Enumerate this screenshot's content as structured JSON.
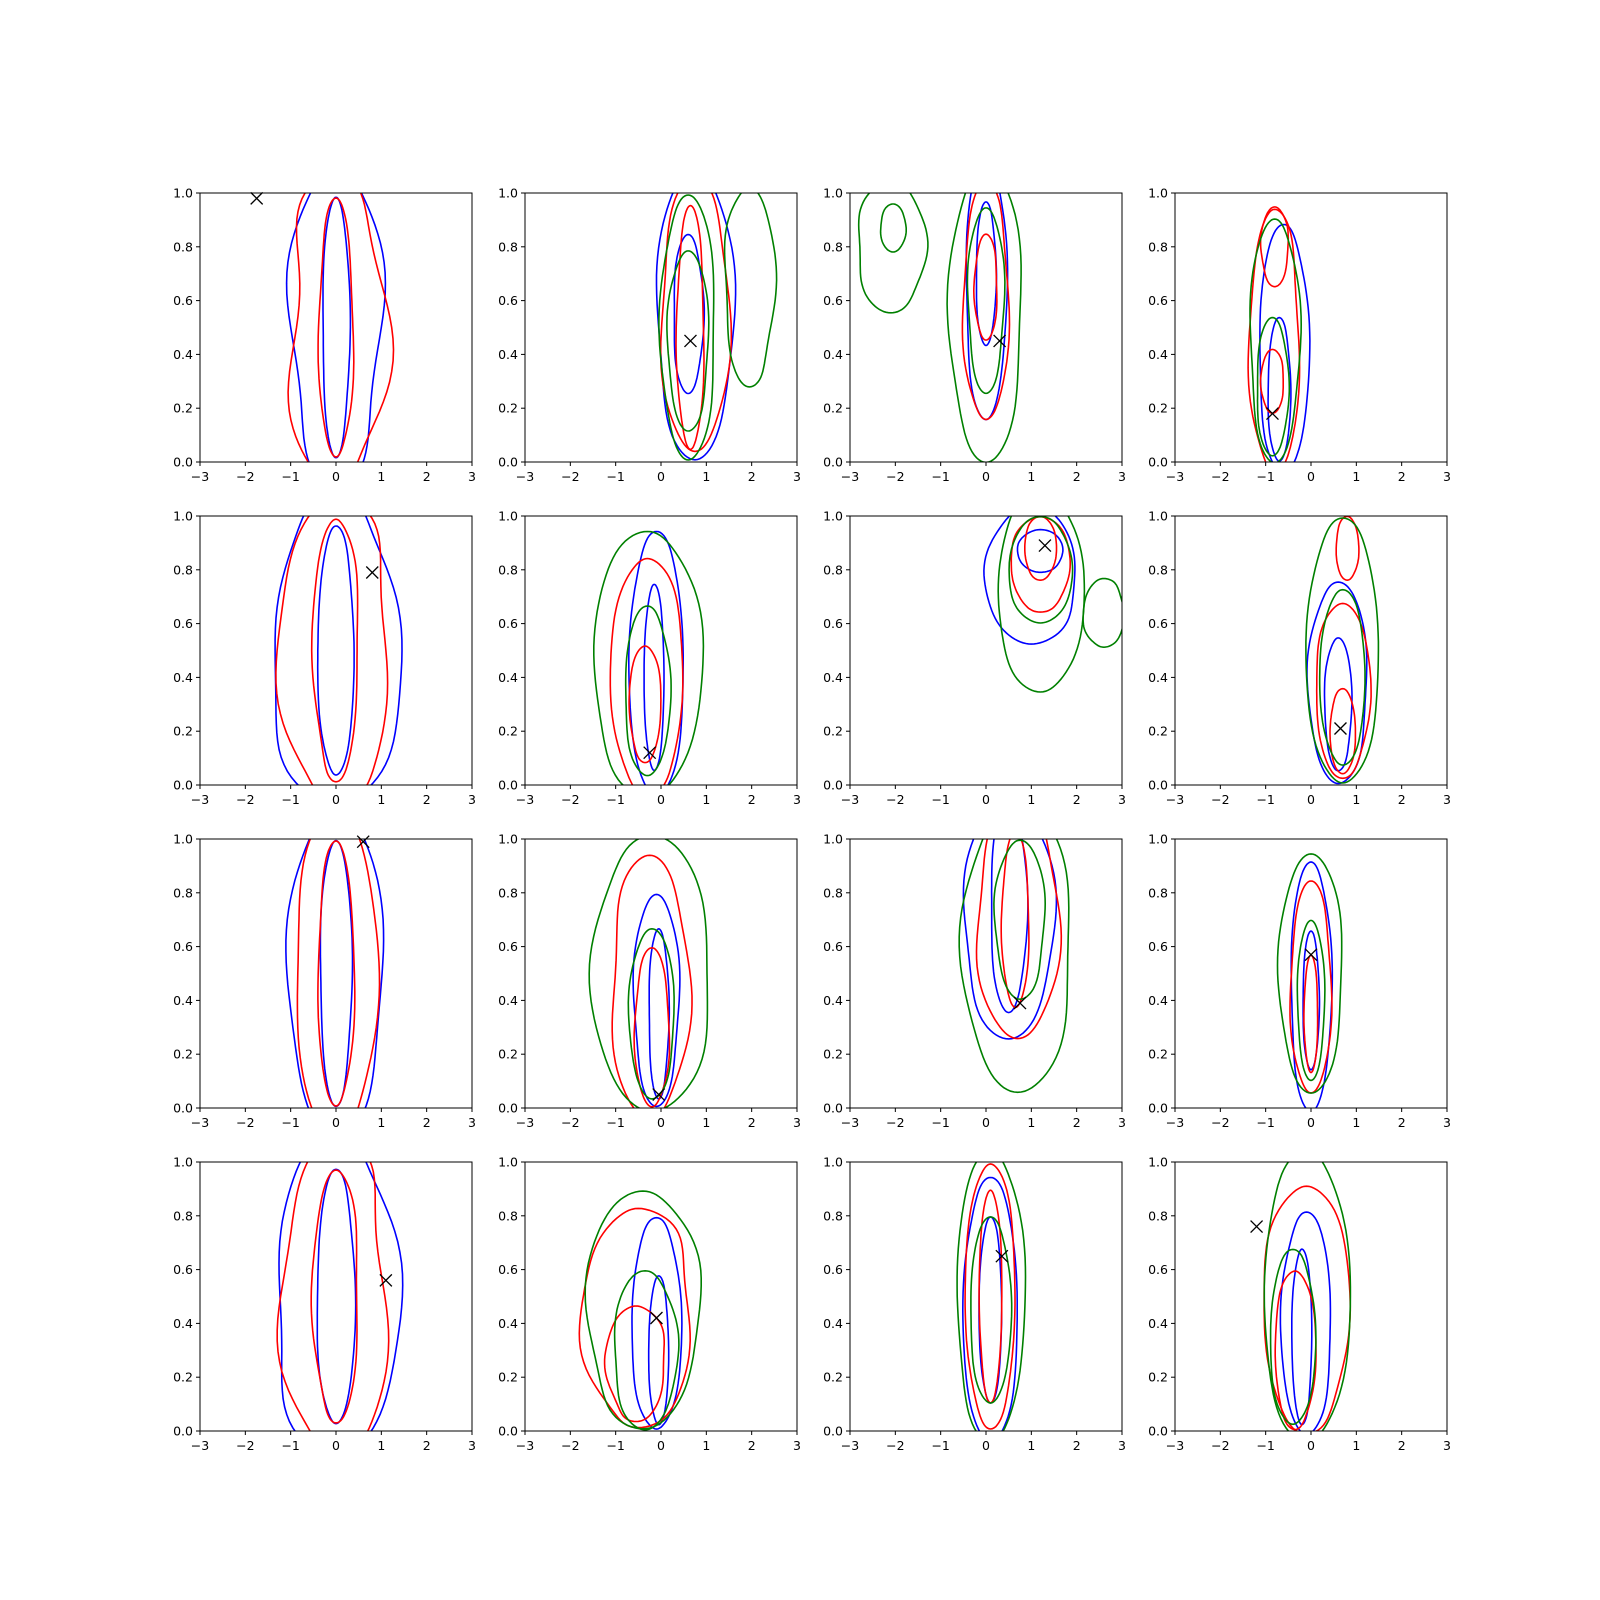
{
  "figure": {
    "rows": 4,
    "cols": 4,
    "background": "#ffffff"
  },
  "colors": {
    "blue": "#0000ff",
    "red": "#ff0000",
    "green": "#008000",
    "marker": "#000000"
  },
  "axes_common": {
    "xlim": [
      -3,
      3
    ],
    "ylim": [
      0,
      1
    ],
    "xticks": [
      -3,
      -2,
      -1,
      0,
      1,
      2,
      3
    ],
    "yticks": [
      0.0,
      0.2,
      0.4,
      0.6,
      0.8,
      1.0
    ],
    "xtick_labels": [
      "−3",
      "−2",
      "−1",
      "0",
      "1",
      "2",
      "3"
    ],
    "ytick_labels": [
      "0.0",
      "0.2",
      "0.4",
      "0.6",
      "0.8",
      "1.0"
    ],
    "grid": false
  },
  "chart_data": [
    {
      "type": "contour",
      "marker": [
        -1.75,
        0.98
      ],
      "contours": [
        {
          "color": "blue",
          "center": [
            0,
            0.5
          ],
          "sx": 1.0,
          "sy": 0.62,
          "wobble": 0.1
        },
        {
          "color": "blue",
          "center": [
            0,
            0.5
          ],
          "sx": 0.3,
          "sy": 0.49,
          "wobble": 0.04
        },
        {
          "color": "red",
          "center": [
            0,
            0.5
          ],
          "sx": 1.05,
          "sy": 0.61,
          "wobble": 0.14
        },
        {
          "color": "red",
          "center": [
            0,
            0.5
          ],
          "sx": 0.38,
          "sy": 0.49,
          "wobble": 0.06
        }
      ]
    },
    {
      "type": "contour",
      "marker": [
        0.65,
        0.45
      ],
      "contours": [
        {
          "color": "blue",
          "center": [
            0.75,
            0.55
          ],
          "sx": 0.85,
          "sy": 0.55,
          "wobble": 0.05
        },
        {
          "color": "blue",
          "center": [
            0.6,
            0.55
          ],
          "sx": 0.33,
          "sy": 0.3,
          "wobble": 0.05
        },
        {
          "color": "red",
          "center": [
            0.75,
            0.55
          ],
          "sx": 0.75,
          "sy": 0.52,
          "wobble": 0.06
        },
        {
          "color": "red",
          "center": [
            0.65,
            0.5
          ],
          "sx": 0.3,
          "sy": 0.46,
          "wobble": 0.05
        },
        {
          "color": "green",
          "center": [
            0.6,
            0.5
          ],
          "sx": 0.6,
          "sy": 0.5,
          "wobble": 0.05
        },
        {
          "color": "green",
          "center": [
            0.6,
            0.45
          ],
          "sx": 0.45,
          "sy": 0.34,
          "wobble": 0.05
        },
        {
          "color": "green",
          "center": [
            1.95,
            0.65
          ],
          "sx": 0.55,
          "sy": 0.38,
          "wobble": 0.08
        }
      ]
    },
    {
      "type": "contour",
      "marker": [
        0.3,
        0.45
      ],
      "contours": [
        {
          "color": "blue",
          "center": [
            0,
            0.65
          ],
          "sx": 0.45,
          "sy": 0.5,
          "wobble": 0.05
        },
        {
          "color": "blue",
          "center": [
            0,
            0.7
          ],
          "sx": 0.22,
          "sy": 0.27,
          "wobble": 0.04
        },
        {
          "color": "red",
          "center": [
            0,
            0.6
          ],
          "sx": 0.5,
          "sy": 0.45,
          "wobble": 0.06
        },
        {
          "color": "red",
          "center": [
            0,
            0.65
          ],
          "sx": 0.25,
          "sy": 0.2,
          "wobble": 0.05
        },
        {
          "color": "green",
          "center": [
            0,
            0.55
          ],
          "sx": 0.8,
          "sy": 0.56,
          "wobble": 0.05
        },
        {
          "color": "green",
          "center": [
            0,
            0.6
          ],
          "sx": 0.4,
          "sy": 0.35,
          "wobble": 0.05
        },
        {
          "color": "green",
          "center": [
            -2.1,
            0.8
          ],
          "sx": 0.75,
          "sy": 0.25,
          "wobble": 0.06
        },
        {
          "color": "green",
          "center": [
            -2.05,
            0.87
          ],
          "sx": 0.28,
          "sy": 0.09,
          "wobble": 0.03
        }
      ]
    },
    {
      "type": "contour",
      "marker": [
        -0.85,
        0.18
      ],
      "contours": [
        {
          "color": "blue",
          "center": [
            -0.6,
            0.42
          ],
          "sx": 0.55,
          "sy": 0.47,
          "wobble": 0.05
        },
        {
          "color": "blue",
          "center": [
            -0.7,
            0.27
          ],
          "sx": 0.25,
          "sy": 0.27,
          "wobble": 0.04
        },
        {
          "color": "red",
          "center": [
            -0.8,
            0.45
          ],
          "sx": 0.55,
          "sy": 0.5,
          "wobble": 0.07
        },
        {
          "color": "red",
          "center": [
            -0.85,
            0.3
          ],
          "sx": 0.25,
          "sy": 0.12,
          "wobble": 0.04
        },
        {
          "color": "red",
          "center": [
            -0.8,
            0.8
          ],
          "sx": 0.3,
          "sy": 0.15,
          "wobble": 0.04
        },
        {
          "color": "green",
          "center": [
            -0.8,
            0.45
          ],
          "sx": 0.55,
          "sy": 0.46,
          "wobble": 0.05
        },
        {
          "color": "green",
          "center": [
            -0.85,
            0.28
          ],
          "sx": 0.35,
          "sy": 0.26,
          "wobble": 0.04
        }
      ]
    },
    {
      "type": "contour",
      "marker": [
        0.8,
        0.79
      ],
      "contours": [
        {
          "color": "blue",
          "center": [
            0,
            0.5
          ],
          "sx": 1.4,
          "sy": 0.6,
          "wobble": 0.12
        },
        {
          "color": "blue",
          "center": [
            0,
            0.5
          ],
          "sx": 0.4,
          "sy": 0.47,
          "wobble": 0.05
        },
        {
          "color": "red",
          "center": [
            0,
            0.5
          ],
          "sx": 1.2,
          "sy": 0.6,
          "wobble": 0.12
        },
        {
          "color": "red",
          "center": [
            0,
            0.5
          ],
          "sx": 0.5,
          "sy": 0.5,
          "wobble": 0.08
        }
      ]
    },
    {
      "type": "contour",
      "marker": [
        -0.25,
        0.12
      ],
      "contours": [
        {
          "color": "blue",
          "center": [
            -0.1,
            0.45
          ],
          "sx": 0.6,
          "sy": 0.5,
          "wobble": 0.05
        },
        {
          "color": "blue",
          "center": [
            -0.15,
            0.4
          ],
          "sx": 0.22,
          "sy": 0.35,
          "wobble": 0.04
        },
        {
          "color": "red",
          "center": [
            -0.3,
            0.4
          ],
          "sx": 0.8,
          "sy": 0.45,
          "wobble": 0.06
        },
        {
          "color": "red",
          "center": [
            -0.35,
            0.3
          ],
          "sx": 0.35,
          "sy": 0.22,
          "wobble": 0.05
        },
        {
          "color": "green",
          "center": [
            -0.3,
            0.45
          ],
          "sx": 1.2,
          "sy": 0.5,
          "wobble": 0.05
        },
        {
          "color": "green",
          "center": [
            -0.3,
            0.35
          ],
          "sx": 0.5,
          "sy": 0.32,
          "wobble": 0.05
        }
      ]
    },
    {
      "type": "contour",
      "marker": [
        1.3,
        0.89
      ],
      "contours": [
        {
          "color": "blue",
          "center": [
            1.0,
            0.78
          ],
          "sx": 1.0,
          "sy": 0.26,
          "wobble": 0.05
        },
        {
          "color": "blue",
          "center": [
            1.2,
            0.87
          ],
          "sx": 0.5,
          "sy": 0.08,
          "wobble": 0.03
        },
        {
          "color": "red",
          "center": [
            1.2,
            0.82
          ],
          "sx": 0.65,
          "sy": 0.18,
          "wobble": 0.05
        },
        {
          "color": "red",
          "center": [
            1.2,
            0.88
          ],
          "sx": 0.35,
          "sy": 0.12,
          "wobble": 0.04
        },
        {
          "color": "green",
          "center": [
            1.2,
            0.72
          ],
          "sx": 0.95,
          "sy": 0.38,
          "wobble": 0.05
        },
        {
          "color": "green",
          "center": [
            1.2,
            0.8
          ],
          "sx": 0.7,
          "sy": 0.2,
          "wobble": 0.04
        },
        {
          "color": "green",
          "center": [
            2.6,
            0.64
          ],
          "sx": 0.45,
          "sy": 0.13,
          "wobble": 0.06
        }
      ]
    },
    {
      "type": "contour",
      "marker": [
        0.65,
        0.21
      ],
      "contours": [
        {
          "color": "blue",
          "center": [
            0.6,
            0.38
          ],
          "sx": 0.65,
          "sy": 0.38,
          "wobble": 0.05
        },
        {
          "color": "blue",
          "center": [
            0.6,
            0.3
          ],
          "sx": 0.3,
          "sy": 0.25,
          "wobble": 0.04
        },
        {
          "color": "red",
          "center": [
            0.7,
            0.35
          ],
          "sx": 0.6,
          "sy": 0.33,
          "wobble": 0.05
        },
        {
          "color": "red",
          "center": [
            0.8,
            0.88
          ],
          "sx": 0.25,
          "sy": 0.12,
          "wobble": 0.04
        },
        {
          "color": "red",
          "center": [
            0.7,
            0.2
          ],
          "sx": 0.28,
          "sy": 0.16,
          "wobble": 0.04
        },
        {
          "color": "green",
          "center": [
            0.7,
            0.5
          ],
          "sx": 0.8,
          "sy": 0.5,
          "wobble": 0.05
        },
        {
          "color": "green",
          "center": [
            0.7,
            0.4
          ],
          "sx": 0.5,
          "sy": 0.33,
          "wobble": 0.04
        }
      ]
    },
    {
      "type": "contour",
      "marker": [
        0.6,
        0.99
      ],
      "contours": [
        {
          "color": "blue",
          "center": [
            0,
            0.5
          ],
          "sx": 1.05,
          "sy": 0.62,
          "wobble": 0.05
        },
        {
          "color": "blue",
          "center": [
            0,
            0.5
          ],
          "sx": 0.35,
          "sy": 0.5,
          "wobble": 0.04
        },
        {
          "color": "red",
          "center": [
            0,
            0.5
          ],
          "sx": 0.9,
          "sy": 0.62,
          "wobble": 0.05
        },
        {
          "color": "red",
          "center": [
            0,
            0.5
          ],
          "sx": 0.4,
          "sy": 0.5,
          "wobble": 0.05
        }
      ]
    },
    {
      "type": "contour",
      "marker": [
        -0.05,
        0.05
      ],
      "contours": [
        {
          "color": "blue",
          "center": [
            -0.1,
            0.4
          ],
          "sx": 0.5,
          "sy": 0.4,
          "wobble": 0.05
        },
        {
          "color": "blue",
          "center": [
            -0.05,
            0.35
          ],
          "sx": 0.22,
          "sy": 0.32,
          "wobble": 0.04
        },
        {
          "color": "red",
          "center": [
            -0.25,
            0.45
          ],
          "sx": 0.85,
          "sy": 0.5,
          "wobble": 0.07
        },
        {
          "color": "red",
          "center": [
            -0.2,
            0.3
          ],
          "sx": 0.38,
          "sy": 0.3,
          "wobble": 0.05
        },
        {
          "color": "green",
          "center": [
            -0.2,
            0.5
          ],
          "sx": 1.3,
          "sy": 0.52,
          "wobble": 0.05
        },
        {
          "color": "green",
          "center": [
            -0.2,
            0.35
          ],
          "sx": 0.5,
          "sy": 0.32,
          "wobble": 0.04
        }
      ]
    },
    {
      "type": "contour",
      "marker": [
        0.75,
        0.39
      ],
      "contours": [
        {
          "color": "blue",
          "center": [
            0.5,
            0.7
          ],
          "sx": 1.0,
          "sy": 0.45,
          "wobble": 0.05
        },
        {
          "color": "blue",
          "center": [
            0.5,
            0.75
          ],
          "sx": 0.4,
          "sy": 0.4,
          "wobble": 0.04
        },
        {
          "color": "red",
          "center": [
            0.7,
            0.7
          ],
          "sx": 0.9,
          "sy": 0.45,
          "wobble": 0.06
        },
        {
          "color": "red",
          "center": [
            0.65,
            0.7
          ],
          "sx": 0.3,
          "sy": 0.33,
          "wobble": 0.04
        },
        {
          "color": "green",
          "center": [
            0.7,
            0.6
          ],
          "sx": 1.2,
          "sy": 0.55,
          "wobble": 0.05
        },
        {
          "color": "green",
          "center": [
            0.75,
            0.7
          ],
          "sx": 0.55,
          "sy": 0.3,
          "wobble": 0.05
        }
      ]
    },
    {
      "type": "contour",
      "marker": [
        0.0,
        0.57
      ],
      "contours": [
        {
          "color": "blue",
          "center": [
            0,
            0.45
          ],
          "sx": 0.45,
          "sy": 0.47,
          "wobble": 0.04
        },
        {
          "color": "blue",
          "center": [
            0,
            0.4
          ],
          "sx": 0.18,
          "sy": 0.26,
          "wobble": 0.03
        },
        {
          "color": "red",
          "center": [
            0,
            0.45
          ],
          "sx": 0.45,
          "sy": 0.4,
          "wobble": 0.05
        },
        {
          "color": "red",
          "center": [
            0,
            0.35
          ],
          "sx": 0.15,
          "sy": 0.22,
          "wobble": 0.03
        },
        {
          "color": "green",
          "center": [
            0,
            0.5
          ],
          "sx": 0.7,
          "sy": 0.45,
          "wobble": 0.04
        },
        {
          "color": "green",
          "center": [
            0,
            0.4
          ],
          "sx": 0.3,
          "sy": 0.3,
          "wobble": 0.03
        }
      ]
    },
    {
      "type": "contour",
      "marker": [
        1.1,
        0.56
      ],
      "contours": [
        {
          "color": "blue",
          "center": [
            0,
            0.5
          ],
          "sx": 1.35,
          "sy": 0.62,
          "wobble": 0.1
        },
        {
          "color": "blue",
          "center": [
            0,
            0.5
          ],
          "sx": 0.42,
          "sy": 0.48,
          "wobble": 0.05
        },
        {
          "color": "red",
          "center": [
            0,
            0.5
          ],
          "sx": 1.15,
          "sy": 0.62,
          "wobble": 0.12
        },
        {
          "color": "red",
          "center": [
            0,
            0.5
          ],
          "sx": 0.5,
          "sy": 0.48,
          "wobble": 0.07
        }
      ]
    },
    {
      "type": "contour",
      "marker": [
        -0.1,
        0.42
      ],
      "contours": [
        {
          "color": "blue",
          "center": [
            -0.1,
            0.4
          ],
          "sx": 0.55,
          "sy": 0.4,
          "wobble": 0.06
        },
        {
          "color": "blue",
          "center": [
            -0.05,
            0.3
          ],
          "sx": 0.22,
          "sy": 0.28,
          "wobble": 0.04
        },
        {
          "color": "red",
          "center": [
            -0.5,
            0.42
          ],
          "sx": 1.2,
          "sy": 0.42,
          "wobble": 0.1
        },
        {
          "color": "red",
          "center": [
            -0.55,
            0.25
          ],
          "sx": 0.65,
          "sy": 0.22,
          "wobble": 0.08
        },
        {
          "color": "green",
          "center": [
            -0.4,
            0.45
          ],
          "sx": 1.25,
          "sy": 0.45,
          "wobble": 0.06
        },
        {
          "color": "green",
          "center": [
            -0.35,
            0.3
          ],
          "sx": 0.7,
          "sy": 0.3,
          "wobble": 0.05
        }
      ]
    },
    {
      "type": "contour",
      "marker": [
        0.35,
        0.65
      ],
      "contours": [
        {
          "color": "blue",
          "center": [
            0.1,
            0.45
          ],
          "sx": 0.6,
          "sy": 0.5,
          "wobble": 0.05
        },
        {
          "color": "blue",
          "center": [
            0.1,
            0.45
          ],
          "sx": 0.25,
          "sy": 0.35,
          "wobble": 0.04
        },
        {
          "color": "red",
          "center": [
            0.1,
            0.5
          ],
          "sx": 0.55,
          "sy": 0.5,
          "wobble": 0.05
        },
        {
          "color": "red",
          "center": [
            0.1,
            0.5
          ],
          "sx": 0.25,
          "sy": 0.4,
          "wobble": 0.04
        },
        {
          "color": "green",
          "center": [
            0.1,
            0.5
          ],
          "sx": 0.75,
          "sy": 0.55,
          "wobble": 0.05
        },
        {
          "color": "green",
          "center": [
            0.1,
            0.45
          ],
          "sx": 0.45,
          "sy": 0.35,
          "wobble": 0.04
        }
      ]
    },
    {
      "type": "contour",
      "marker": [
        -1.2,
        0.76
      ],
      "contours": [
        {
          "color": "blue",
          "center": [
            -0.1,
            0.4
          ],
          "sx": 0.55,
          "sy": 0.42,
          "wobble": 0.05
        },
        {
          "color": "blue",
          "center": [
            -0.2,
            0.35
          ],
          "sx": 0.22,
          "sy": 0.33,
          "wobble": 0.04
        },
        {
          "color": "red",
          "center": [
            -0.1,
            0.45
          ],
          "sx": 0.95,
          "sy": 0.47,
          "wobble": 0.07
        },
        {
          "color": "red",
          "center": [
            -0.35,
            0.3
          ],
          "sx": 0.45,
          "sy": 0.3,
          "wobble": 0.06
        },
        {
          "color": "green",
          "center": [
            -0.1,
            0.5
          ],
          "sx": 0.95,
          "sy": 0.55,
          "wobble": 0.05
        },
        {
          "color": "green",
          "center": [
            -0.4,
            0.35
          ],
          "sx": 0.5,
          "sy": 0.33,
          "wobble": 0.05
        }
      ]
    }
  ]
}
